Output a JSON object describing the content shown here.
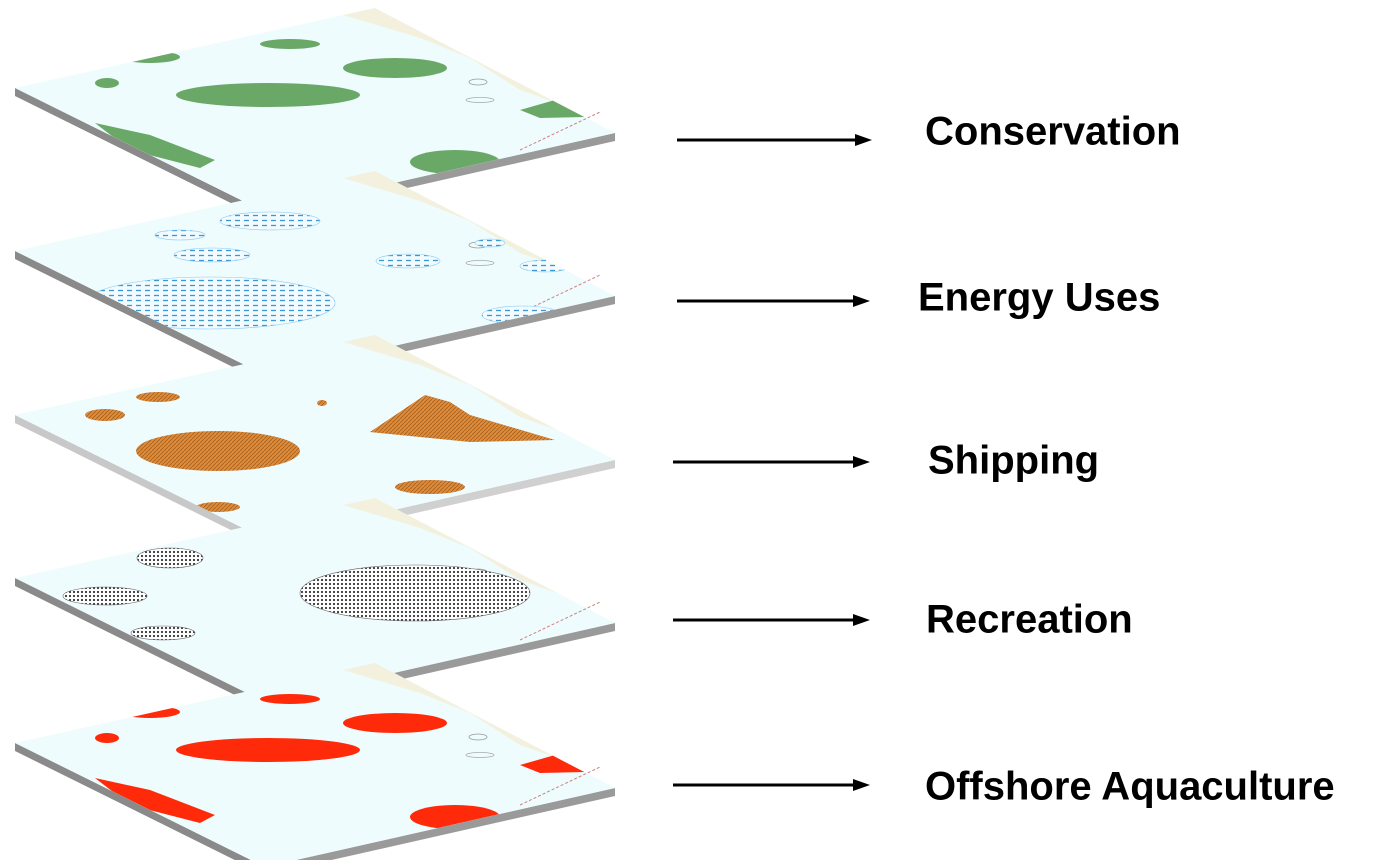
{
  "layers": [
    {
      "label": "Conservation"
    },
    {
      "label": "Energy Uses"
    },
    {
      "label": "Shipping"
    },
    {
      "label": "Recreation"
    },
    {
      "label": "Offshore Aquaculture"
    }
  ]
}
